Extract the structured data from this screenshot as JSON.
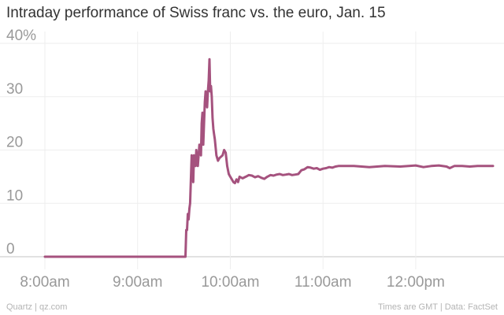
{
  "chart_data": {
    "type": "line",
    "title": "Intraday performance of Swiss franc vs. the euro, Jan. 15",
    "xlabel": "",
    "ylabel": "",
    "x_unit": "minutes after 8:00am GMT",
    "xlim": [
      0,
      290
    ],
    "ylim": [
      0,
      40
    ],
    "y_ticks": [
      0,
      10,
      20,
      30,
      40
    ],
    "y_tick_labels": [
      "0",
      "10",
      "20",
      "30",
      "40%"
    ],
    "x_ticks": [
      0,
      60,
      120,
      180,
      240
    ],
    "x_tick_labels": [
      "8:00am",
      "9:00am",
      "10:00am",
      "11:00am",
      "12:00pm"
    ],
    "grid": true,
    "line_color": "#a5527e",
    "series": [
      {
        "x": [
          0,
          60,
          90,
          91,
          91.5,
          92,
          92.5,
          93,
          93.5,
          94,
          95,
          95.5,
          96,
          96.5,
          97,
          97.5,
          98,
          98.5,
          99,
          100,
          101,
          101.5,
          102,
          102.5,
          103,
          103.5,
          104,
          104.5,
          105,
          105.5,
          106,
          106.5,
          107,
          107.5,
          108,
          108.5,
          109,
          109.5,
          110,
          111,
          112,
          113,
          115,
          116,
          117,
          118,
          119,
          120,
          121,
          122,
          123,
          124,
          125,
          126,
          128,
          130,
          132,
          134,
          136,
          138,
          140,
          142,
          144,
          146,
          148,
          150,
          152,
          154,
          156,
          158,
          160,
          162,
          164,
          166,
          168,
          170,
          172,
          174,
          176,
          178,
          180,
          182,
          184,
          186,
          188,
          190,
          195,
          200,
          210,
          220,
          230,
          240,
          245,
          250,
          255,
          260,
          262,
          265,
          270,
          275,
          280,
          285,
          290
        ],
        "values": [
          0,
          0,
          0,
          0,
          5,
          5,
          8,
          7,
          9,
          10,
          19,
          17,
          14,
          19,
          18,
          17,
          20,
          18,
          17,
          21,
          19,
          25,
          27,
          21,
          25,
          29,
          31,
          30,
          28,
          31,
          33,
          37,
          31,
          32,
          30,
          26,
          24,
          23,
          22,
          19,
          18,
          18.5,
          19,
          20,
          19.5,
          17,
          15.5,
          15,
          14.5,
          14,
          13.8,
          14.5,
          14,
          15,
          14.7,
          15,
          15.3,
          15.2,
          14.9,
          15.1,
          14.8,
          14.6,
          15,
          15.3,
          15.2,
          15.4,
          15.5,
          15.3,
          15.4,
          15.5,
          15.3,
          15.4,
          15.5,
          16.2,
          16.4,
          16.8,
          16.7,
          16.5,
          16.6,
          16.3,
          16.5,
          16.6,
          16.8,
          16.7,
          16.9,
          17,
          17,
          17,
          16.8,
          17,
          16.9,
          17.1,
          16.8,
          17,
          17.1,
          16.9,
          16.6,
          17,
          17,
          16.9,
          17,
          17,
          17
        ]
      }
    ]
  },
  "footer": {
    "source_left": "Quartz | qz.com",
    "source_right": "Times are GMT | Data: FactSet"
  }
}
